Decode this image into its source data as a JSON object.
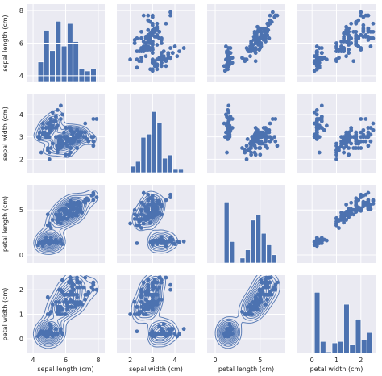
{
  "chart_data": {
    "type": "pairgrid",
    "title": "",
    "variables": [
      "sepal length (cm)",
      "sepal width (cm)",
      "petal length (cm)",
      "petal width (cm)"
    ],
    "ranges": [
      [
        3.6,
        8.4
      ],
      [
        1.4,
        4.9
      ],
      [
        -0.9,
        7.8
      ],
      [
        -0.6,
        2.6
      ]
    ],
    "ticks": [
      [
        4,
        6,
        8
      ],
      [
        2,
        3,
        4
      ],
      [
        0,
        5
      ],
      [
        0,
        1,
        2
      ]
    ],
    "layout": {
      "diagonal": "hist",
      "upper": "scatter",
      "lower": "kde_with_scatter"
    },
    "grid": true,
    "color": "#4C72B0",
    "background_color": "#EAEAF2",
    "histograms": {
      "sepal length (cm)": {
        "bin_edges": [
          4.3,
          4.66,
          5.02,
          5.38,
          5.74,
          6.1,
          6.46,
          6.82,
          7.18,
          7.54,
          7.9
        ],
        "counts": [
          9,
          23,
          14,
          27,
          16,
          26,
          18,
          6,
          5,
          6
        ]
      },
      "sepal width (cm)": {
        "bin_edges": [
          2.0,
          2.24,
          2.48,
          2.72,
          2.96,
          3.2,
          3.44,
          3.68,
          3.92,
          4.16,
          4.4
        ],
        "counts": [
          4,
          7,
          22,
          24,
          38,
          31,
          9,
          11,
          2,
          2
        ]
      },
      "petal length (cm)": {
        "bin_edges": [
          1.0,
          1.59,
          2.18,
          2.77,
          3.36,
          3.95,
          4.54,
          5.13,
          5.72,
          6.31,
          6.9
        ],
        "counts": [
          37,
          13,
          0,
          3,
          8,
          26,
          29,
          18,
          11,
          5
        ]
      },
      "petal width (cm)": {
        "bin_edges": [
          0.1,
          0.34,
          0.58,
          0.82,
          1.06,
          1.3,
          1.54,
          1.78,
          2.02,
          2.26,
          2.5
        ],
        "counts": [
          41,
          8,
          1,
          7,
          8,
          33,
          6,
          23,
          9,
          14
        ]
      }
    },
    "points": [
      [
        5.1,
        3.5,
        1.4,
        0.2
      ],
      [
        4.9,
        3.0,
        1.4,
        0.2
      ],
      [
        4.7,
        3.2,
        1.3,
        0.2
      ],
      [
        4.6,
        3.1,
        1.5,
        0.2
      ],
      [
        5.0,
        3.6,
        1.4,
        0.2
      ],
      [
        5.4,
        3.9,
        1.7,
        0.4
      ],
      [
        4.6,
        3.4,
        1.4,
        0.3
      ],
      [
        5.0,
        3.4,
        1.5,
        0.2
      ],
      [
        4.4,
        2.9,
        1.4,
        0.2
      ],
      [
        4.9,
        3.1,
        1.5,
        0.1
      ],
      [
        5.4,
        3.7,
        1.5,
        0.2
      ],
      [
        4.8,
        3.4,
        1.6,
        0.2
      ],
      [
        4.8,
        3.0,
        1.4,
        0.1
      ],
      [
        4.3,
        3.0,
        1.1,
        0.1
      ],
      [
        5.8,
        4.0,
        1.2,
        0.2
      ],
      [
        5.7,
        4.4,
        1.5,
        0.4
      ],
      [
        5.4,
        3.9,
        1.3,
        0.4
      ],
      [
        5.1,
        3.5,
        1.4,
        0.3
      ],
      [
        5.7,
        3.8,
        1.7,
        0.3
      ],
      [
        5.1,
        3.8,
        1.5,
        0.3
      ],
      [
        5.4,
        3.4,
        1.7,
        0.2
      ],
      [
        5.1,
        3.7,
        1.5,
        0.4
      ],
      [
        4.6,
        3.6,
        1.0,
        0.2
      ],
      [
        5.1,
        3.3,
        1.7,
        0.5
      ],
      [
        4.8,
        3.4,
        1.9,
        0.2
      ],
      [
        5.0,
        3.0,
        1.6,
        0.2
      ],
      [
        5.0,
        3.4,
        1.6,
        0.4
      ],
      [
        5.2,
        3.5,
        1.5,
        0.2
      ],
      [
        5.2,
        3.4,
        1.4,
        0.2
      ],
      [
        4.7,
        3.2,
        1.6,
        0.2
      ],
      [
        4.8,
        3.1,
        1.6,
        0.2
      ],
      [
        5.4,
        3.4,
        1.5,
        0.4
      ],
      [
        5.2,
        4.1,
        1.5,
        0.1
      ],
      [
        5.5,
        4.2,
        1.4,
        0.2
      ],
      [
        4.9,
        3.1,
        1.5,
        0.2
      ],
      [
        5.0,
        3.2,
        1.2,
        0.2
      ],
      [
        5.5,
        3.5,
        1.3,
        0.2
      ],
      [
        4.9,
        3.6,
        1.4,
        0.1
      ],
      [
        4.4,
        3.0,
        1.3,
        0.2
      ],
      [
        5.1,
        3.4,
        1.5,
        0.2
      ],
      [
        5.0,
        3.5,
        1.3,
        0.3
      ],
      [
        4.5,
        2.3,
        1.3,
        0.3
      ],
      [
        4.4,
        3.2,
        1.3,
        0.2
      ],
      [
        5.0,
        3.5,
        1.6,
        0.6
      ],
      [
        5.1,
        3.8,
        1.9,
        0.4
      ],
      [
        4.8,
        3.0,
        1.4,
        0.3
      ],
      [
        5.1,
        3.8,
        1.6,
        0.2
      ],
      [
        4.6,
        3.2,
        1.4,
        0.2
      ],
      [
        5.3,
        3.7,
        1.5,
        0.2
      ],
      [
        5.0,
        3.3,
        1.4,
        0.2
      ],
      [
        7.0,
        3.2,
        4.7,
        1.4
      ],
      [
        6.4,
        3.2,
        4.5,
        1.5
      ],
      [
        6.9,
        3.1,
        4.9,
        1.5
      ],
      [
        5.5,
        2.3,
        4.0,
        1.3
      ],
      [
        6.5,
        2.8,
        4.6,
        1.5
      ],
      [
        5.7,
        2.8,
        4.5,
        1.3
      ],
      [
        6.3,
        3.3,
        4.7,
        1.6
      ],
      [
        4.9,
        2.4,
        3.3,
        1.0
      ],
      [
        6.6,
        2.9,
        4.6,
        1.3
      ],
      [
        5.2,
        2.7,
        3.9,
        1.4
      ],
      [
        5.0,
        2.0,
        3.5,
        1.0
      ],
      [
        5.9,
        3.0,
        4.2,
        1.5
      ],
      [
        6.0,
        2.2,
        4.0,
        1.0
      ],
      [
        6.1,
        2.9,
        4.7,
        1.4
      ],
      [
        5.6,
        2.9,
        3.6,
        1.3
      ],
      [
        6.7,
        3.1,
        4.4,
        1.4
      ],
      [
        5.6,
        3.0,
        4.5,
        1.5
      ],
      [
        5.8,
        2.7,
        4.1,
        1.0
      ],
      [
        6.2,
        2.2,
        4.5,
        1.5
      ],
      [
        5.6,
        2.5,
        3.9,
        1.1
      ],
      [
        5.9,
        3.2,
        4.8,
        1.8
      ],
      [
        6.1,
        2.8,
        4.0,
        1.3
      ],
      [
        6.3,
        2.5,
        4.9,
        1.5
      ],
      [
        6.1,
        2.8,
        4.7,
        1.2
      ],
      [
        6.4,
        2.9,
        4.3,
        1.3
      ],
      [
        6.6,
        3.0,
        4.4,
        1.4
      ],
      [
        6.8,
        2.8,
        4.8,
        1.4
      ],
      [
        6.7,
        3.0,
        5.0,
        1.7
      ],
      [
        6.0,
        2.9,
        4.5,
        1.5
      ],
      [
        5.7,
        2.6,
        3.5,
        1.0
      ],
      [
        5.5,
        2.4,
        3.8,
        1.1
      ],
      [
        5.5,
        2.4,
        3.7,
        1.0
      ],
      [
        5.8,
        2.7,
        3.9,
        1.2
      ],
      [
        6.0,
        2.7,
        5.1,
        1.6
      ],
      [
        5.4,
        3.0,
        4.5,
        1.5
      ],
      [
        6.0,
        3.4,
        4.5,
        1.6
      ],
      [
        6.7,
        3.1,
        4.7,
        1.5
      ],
      [
        6.3,
        2.3,
        4.4,
        1.3
      ],
      [
        5.6,
        3.0,
        4.1,
        1.3
      ],
      [
        5.5,
        2.5,
        4.0,
        1.3
      ],
      [
        5.5,
        2.6,
        4.4,
        1.2
      ],
      [
        6.1,
        3.0,
        4.6,
        1.4
      ],
      [
        5.8,
        2.6,
        4.0,
        1.2
      ],
      [
        5.0,
        2.3,
        3.3,
        1.0
      ],
      [
        5.6,
        2.7,
        4.2,
        1.3
      ],
      [
        5.7,
        3.0,
        4.2,
        1.2
      ],
      [
        5.7,
        2.9,
        4.2,
        1.3
      ],
      [
        6.2,
        2.9,
        4.3,
        1.3
      ],
      [
        5.1,
        2.5,
        3.0,
        1.1
      ],
      [
        5.7,
        2.8,
        4.1,
        1.3
      ],
      [
        6.3,
        3.3,
        6.0,
        2.5
      ],
      [
        5.8,
        2.7,
        5.1,
        1.9
      ],
      [
        7.1,
        3.0,
        5.9,
        2.1
      ],
      [
        6.3,
        2.9,
        5.6,
        1.8
      ],
      [
        6.5,
        3.0,
        5.8,
        2.2
      ],
      [
        7.6,
        3.0,
        6.6,
        2.1
      ],
      [
        4.9,
        2.5,
        4.5,
        1.7
      ],
      [
        7.3,
        2.9,
        6.3,
        1.8
      ],
      [
        6.7,
        2.5,
        5.8,
        1.8
      ],
      [
        7.2,
        3.6,
        6.1,
        2.5
      ],
      [
        6.5,
        3.2,
        5.1,
        2.0
      ],
      [
        6.4,
        2.7,
        5.3,
        1.9
      ],
      [
        6.8,
        3.0,
        5.5,
        2.1
      ],
      [
        5.7,
        2.5,
        5.0,
        2.0
      ],
      [
        5.8,
        2.8,
        5.1,
        2.4
      ],
      [
        6.4,
        3.2,
        5.3,
        2.3
      ],
      [
        6.5,
        3.0,
        5.5,
        1.8
      ],
      [
        7.7,
        3.8,
        6.7,
        2.2
      ],
      [
        7.7,
        2.6,
        6.9,
        2.3
      ],
      [
        6.0,
        2.2,
        5.0,
        1.5
      ],
      [
        6.9,
        3.2,
        5.7,
        2.3
      ],
      [
        5.6,
        2.8,
        4.9,
        2.0
      ],
      [
        7.7,
        2.8,
        6.7,
        2.0
      ],
      [
        6.3,
        2.7,
        4.9,
        1.8
      ],
      [
        6.7,
        3.3,
        5.7,
        2.1
      ],
      [
        7.2,
        3.2,
        6.0,
        1.8
      ],
      [
        6.2,
        2.8,
        4.8,
        1.8
      ],
      [
        6.1,
        3.0,
        4.9,
        1.8
      ],
      [
        6.4,
        2.8,
        5.6,
        2.1
      ],
      [
        7.2,
        3.0,
        5.8,
        1.6
      ],
      [
        7.4,
        2.8,
        6.1,
        1.9
      ],
      [
        7.9,
        3.8,
        6.4,
        2.0
      ],
      [
        6.4,
        2.8,
        5.6,
        2.2
      ],
      [
        6.3,
        2.8,
        5.1,
        1.5
      ],
      [
        6.1,
        2.6,
        5.6,
        1.4
      ],
      [
        7.7,
        3.0,
        6.1,
        2.3
      ],
      [
        6.3,
        3.4,
        5.6,
        2.4
      ],
      [
        6.4,
        3.1,
        5.5,
        1.8
      ],
      [
        6.0,
        3.0,
        4.8,
        1.8
      ],
      [
        6.9,
        3.1,
        5.4,
        2.1
      ],
      [
        6.7,
        3.1,
        5.6,
        2.4
      ],
      [
        6.9,
        3.1,
        5.1,
        2.3
      ],
      [
        5.8,
        2.7,
        5.1,
        1.9
      ],
      [
        6.8,
        3.2,
        5.9,
        2.3
      ],
      [
        6.7,
        3.3,
        5.7,
        2.5
      ],
      [
        6.7,
        3.0,
        5.2,
        2.3
      ],
      [
        6.3,
        2.5,
        5.0,
        1.9
      ],
      [
        6.5,
        3.0,
        5.2,
        2.0
      ],
      [
        6.2,
        3.4,
        5.4,
        2.3
      ],
      [
        5.9,
        3.0,
        5.1,
        1.8
      ]
    ]
  }
}
